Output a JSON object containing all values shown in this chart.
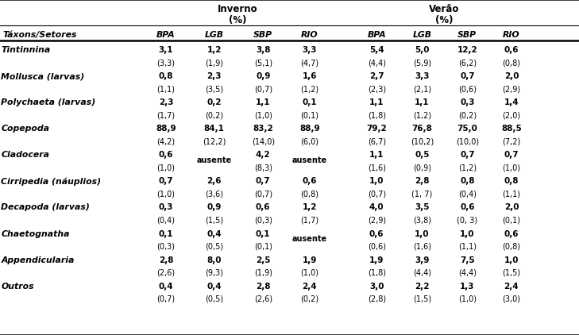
{
  "title_inverno": "Inverno",
  "title_verao": "Verão",
  "subtitle": "(%)",
  "rows": [
    {
      "taxon": "Tintinnina",
      "vals": [
        "3,1",
        "(3,3)",
        "1,2",
        "(1,9)",
        "3,8",
        "(5,1)",
        "3,3",
        "(4,7)",
        "5,4",
        "(4,4)",
        "5,0",
        "(5,9)",
        "12,2",
        "(6,2)",
        "0,6",
        "(0,8)"
      ]
    },
    {
      "taxon": "Mollusca (larvas)",
      "vals": [
        "0,8",
        "(1,1)",
        "2,3",
        "(3,5)",
        "0,9",
        "(0,7)",
        "1,6",
        "(1,2)",
        "2,7",
        "(2,3)",
        "3,3",
        "(2,1)",
        "0,7",
        "(0,6)",
        "2,0",
        "(2,9)"
      ]
    },
    {
      "taxon": "Polychaeta (larvas)",
      "vals": [
        "2,3",
        "(1,7)",
        "0,2",
        "(0,2)",
        "1,1",
        "(1,0)",
        "0,1",
        "(0,1)",
        "1,1",
        "(1,8)",
        "1,1",
        "(1,2)",
        "0,3",
        "(0,2)",
        "1,4",
        "(2,0)"
      ]
    },
    {
      "taxon": "Copepoda",
      "vals": [
        "88,9",
        "(4,2)",
        "84,1",
        "(12,2)",
        "83,2",
        "(14,0)",
        "88,9",
        "(6,0)",
        "79,2",
        "(6,7)",
        "76,8",
        "(10,2)",
        "75,0",
        "(10,0)",
        "88,5",
        "(7,2)"
      ]
    },
    {
      "taxon": "Cladocera",
      "vals": [
        "0,6",
        "(1,0)",
        "ausente",
        "",
        "4,2",
        "(8,3)",
        "ausente",
        "",
        "1,1",
        "(1,6)",
        "0,5",
        "(0,9)",
        "0,7",
        "(1,2)",
        "0,7",
        "(1,0)"
      ]
    },
    {
      "taxon": "Cirripedia (náuplios)",
      "vals": [
        "0,7",
        "(1,0)",
        "2,6",
        "(3,6)",
        "0,7",
        "(0,7)",
        "0,6",
        "(0,8)",
        "1,0",
        "(0,7)",
        "2,8",
        "(1, 7)",
        "0,8",
        "(0,4)",
        "0,8",
        "(1,1)"
      ]
    },
    {
      "taxon": "Decapoda (larvas)",
      "vals": [
        "0,3",
        "(0,4)",
        "0,9",
        "(1,5)",
        "0,6",
        "(0,3)",
        "1,2",
        "(1,7)",
        "4,0",
        "(2,9)",
        "3,5",
        "(3,8)",
        "0,6",
        "(0, 3)",
        "2,0",
        "(0,1)"
      ]
    },
    {
      "taxon": "Chaetognatha",
      "vals": [
        "0,1",
        "(0,3)",
        "0,4",
        "(0,5)",
        "0,1",
        "(0,1)",
        "ausente",
        "",
        "0,6",
        "(0,6)",
        "1,0",
        "(1,6)",
        "1,0",
        "(1,1)",
        "0,6",
        "(0,8)"
      ]
    },
    {
      "taxon": "Appendicularia",
      "vals": [
        "2,8",
        "(2,6)",
        "8,0",
        "(9,3)",
        "2,5",
        "(1,9)",
        "1,9",
        "(1,0)",
        "1,9",
        "(1,8)",
        "3,9",
        "(4,4)",
        "7,5",
        "(4,4)",
        "1,0",
        "(1,5)"
      ]
    },
    {
      "taxon": "Outros",
      "vals": [
        "0,4",
        "(0,7)",
        "0,4",
        "(0,5)",
        "2,8",
        "(2,6)",
        "2,4",
        "(0,2)",
        "3,0",
        "(2,8)",
        "2,2",
        "(1,5)",
        "1,3",
        "(1,0)",
        "2,4",
        "(3,0)"
      ]
    }
  ],
  "col_labels": [
    "Táxons/Setores",
    "BPA",
    "LGB",
    "SBP",
    "RIO",
    "BPA",
    "LGB",
    "SBP",
    "RIO"
  ],
  "bg_color": "#ffffff"
}
